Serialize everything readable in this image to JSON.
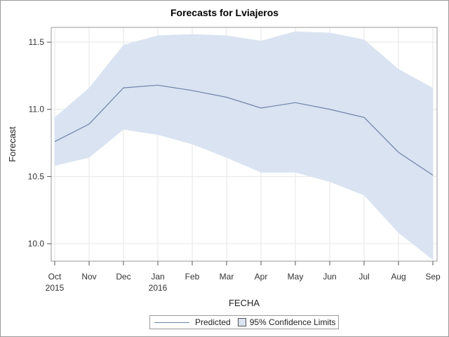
{
  "chart_data": {
    "type": "line",
    "title": "Forecasts for Lviajeros",
    "xlabel": "FECHA",
    "ylabel": "Forecast",
    "categories": [
      "Oct",
      "Nov",
      "Dec",
      "Jan",
      "Feb",
      "Mar",
      "Apr",
      "May",
      "Jun",
      "Jul",
      "Aug",
      "Sep"
    ],
    "year_labels": [
      "2015",
      "",
      "",
      "2016",
      "",
      "",
      "",
      "",
      "",
      "",
      "",
      ""
    ],
    "ylim": [
      9.87,
      11.61
    ],
    "yticks": [
      "10.0",
      "10.5",
      "11.0",
      "11.5"
    ],
    "ytick_values": [
      10.0,
      10.5,
      11.0,
      11.5
    ],
    "grid": true,
    "legend_position": "bottom-center",
    "series": [
      {
        "name": "Predicted",
        "color": "#6f82a8",
        "values": [
          10.76,
          10.89,
          11.16,
          11.18,
          11.14,
          11.09,
          11.01,
          11.05,
          11.0,
          10.94,
          10.68,
          10.51
        ]
      },
      {
        "name": "95% Confidence Limits",
        "color": "#d9e3f1",
        "lower": [
          10.58,
          10.64,
          10.85,
          10.81,
          10.74,
          10.64,
          10.53,
          10.53,
          10.46,
          10.36,
          10.08,
          9.88
        ],
        "upper": [
          10.94,
          11.16,
          11.48,
          11.55,
          11.56,
          11.55,
          11.51,
          11.58,
          11.57,
          11.52,
          11.3,
          11.16
        ]
      }
    ]
  }
}
